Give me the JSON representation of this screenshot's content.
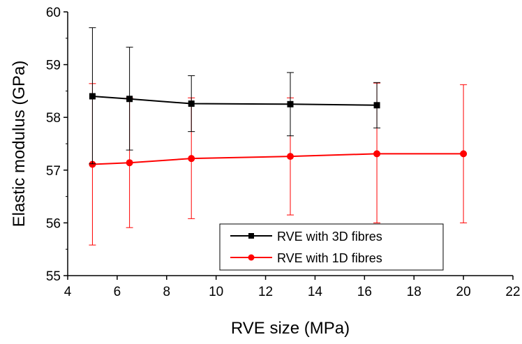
{
  "chart_data": {
    "type": "line",
    "xlabel": "RVE size (MPa)",
    "ylabel": "Elastic modulus (GPa)",
    "xlim": [
      4,
      22
    ],
    "ylim": [
      55,
      60
    ],
    "xticks": [
      4,
      6,
      8,
      10,
      12,
      14,
      16,
      18,
      20,
      22
    ],
    "yticks": [
      55,
      56,
      57,
      58,
      59,
      60
    ],
    "grid": false,
    "legend_position": "bottom-right",
    "series": [
      {
        "name": "RVE with 3D fibres",
        "color": "#000000",
        "marker": "square",
        "x": [
          5,
          6.5,
          9,
          13,
          16.5
        ],
        "y": [
          58.4,
          58.35,
          58.26,
          58.25,
          58.23
        ],
        "err_low": [
          57.12,
          57.38,
          57.73,
          57.65,
          57.8
        ],
        "err_high": [
          59.7,
          59.33,
          58.79,
          58.85,
          58.66
        ]
      },
      {
        "name": "RVE with 1D fibres",
        "color": "#ff0000",
        "marker": "circle",
        "x": [
          5,
          6.5,
          9,
          13,
          16.5,
          20
        ],
        "y": [
          57.11,
          57.14,
          57.22,
          57.26,
          57.31,
          57.31
        ],
        "err_low": [
          55.58,
          55.91,
          56.08,
          56.15,
          56.0,
          56.0
        ],
        "err_high": [
          58.64,
          58.37,
          58.37,
          58.37,
          58.65,
          58.62
        ]
      }
    ]
  }
}
